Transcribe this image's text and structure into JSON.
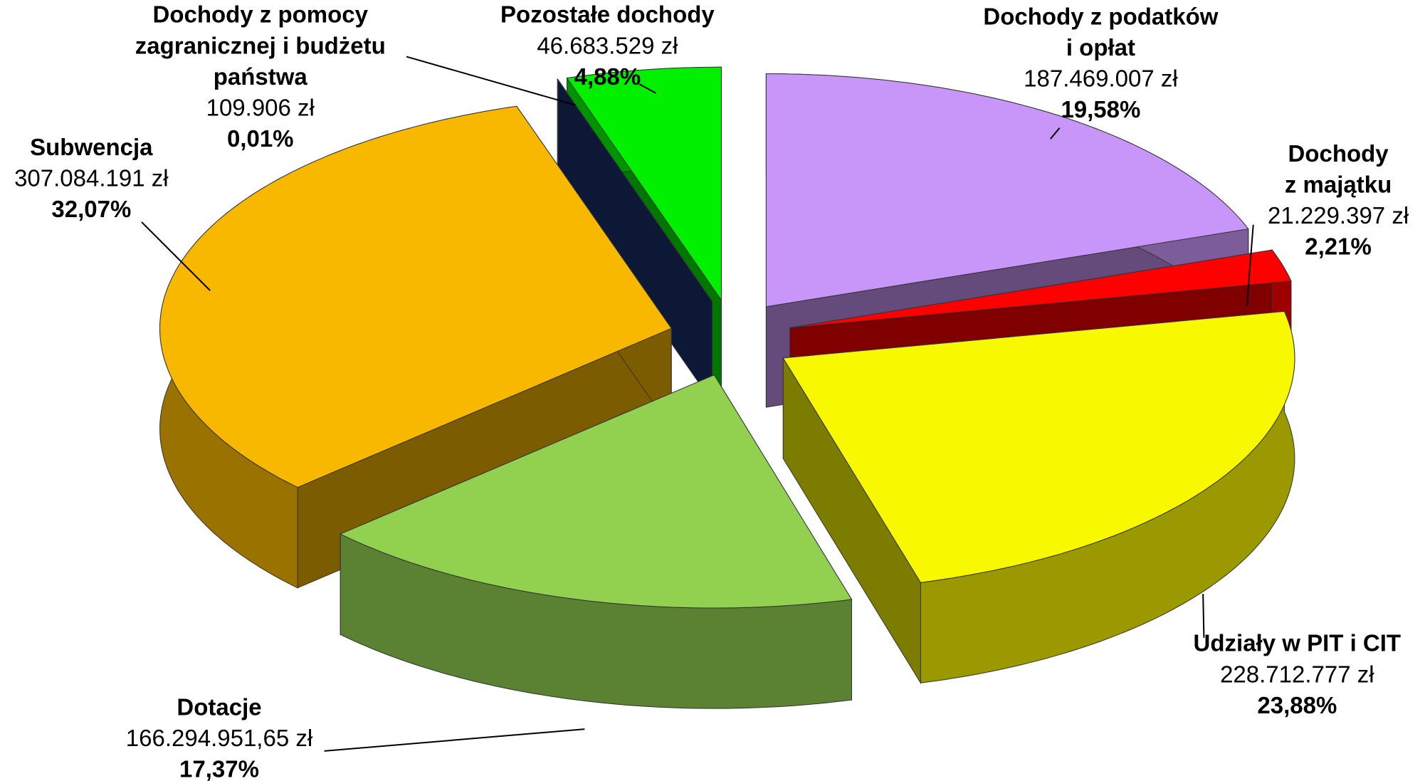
{
  "chart_data": {
    "type": "pie3d",
    "categories": [
      [
        "Dochody z podatków",
        "i opłat"
      ],
      [
        "Dochody",
        "z majątku"
      ],
      [
        "Udziały w PIT i CIT"
      ],
      [
        "Dotacje"
      ],
      [
        "Subwencja"
      ],
      [
        "Dochody z pomocy",
        "zagranicznej i budżetu",
        "państwa"
      ],
      [
        "Pozostałe dochody"
      ]
    ],
    "values": [
      19.58,
      2.21,
      23.88,
      17.37,
      32.07,
      0.01,
      4.88
    ],
    "value_labels": [
      "19,58%",
      "2,21%",
      "23,88%",
      "17,37%",
      "32,07%",
      "0,01%",
      "4,88%"
    ],
    "amount_labels": [
      "187.469.007 zł",
      "21.229.397 zł",
      "228.712.777 zł",
      "166.294.951,65 zł",
      "307.084.191 zł",
      "109.906 zł",
      "46.683.529 zł"
    ],
    "colors": [
      "#c896f8",
      "#ff0000",
      "#f8f800",
      "#92d050",
      "#f8b800",
      "#17306a",
      "#00f000"
    ]
  }
}
